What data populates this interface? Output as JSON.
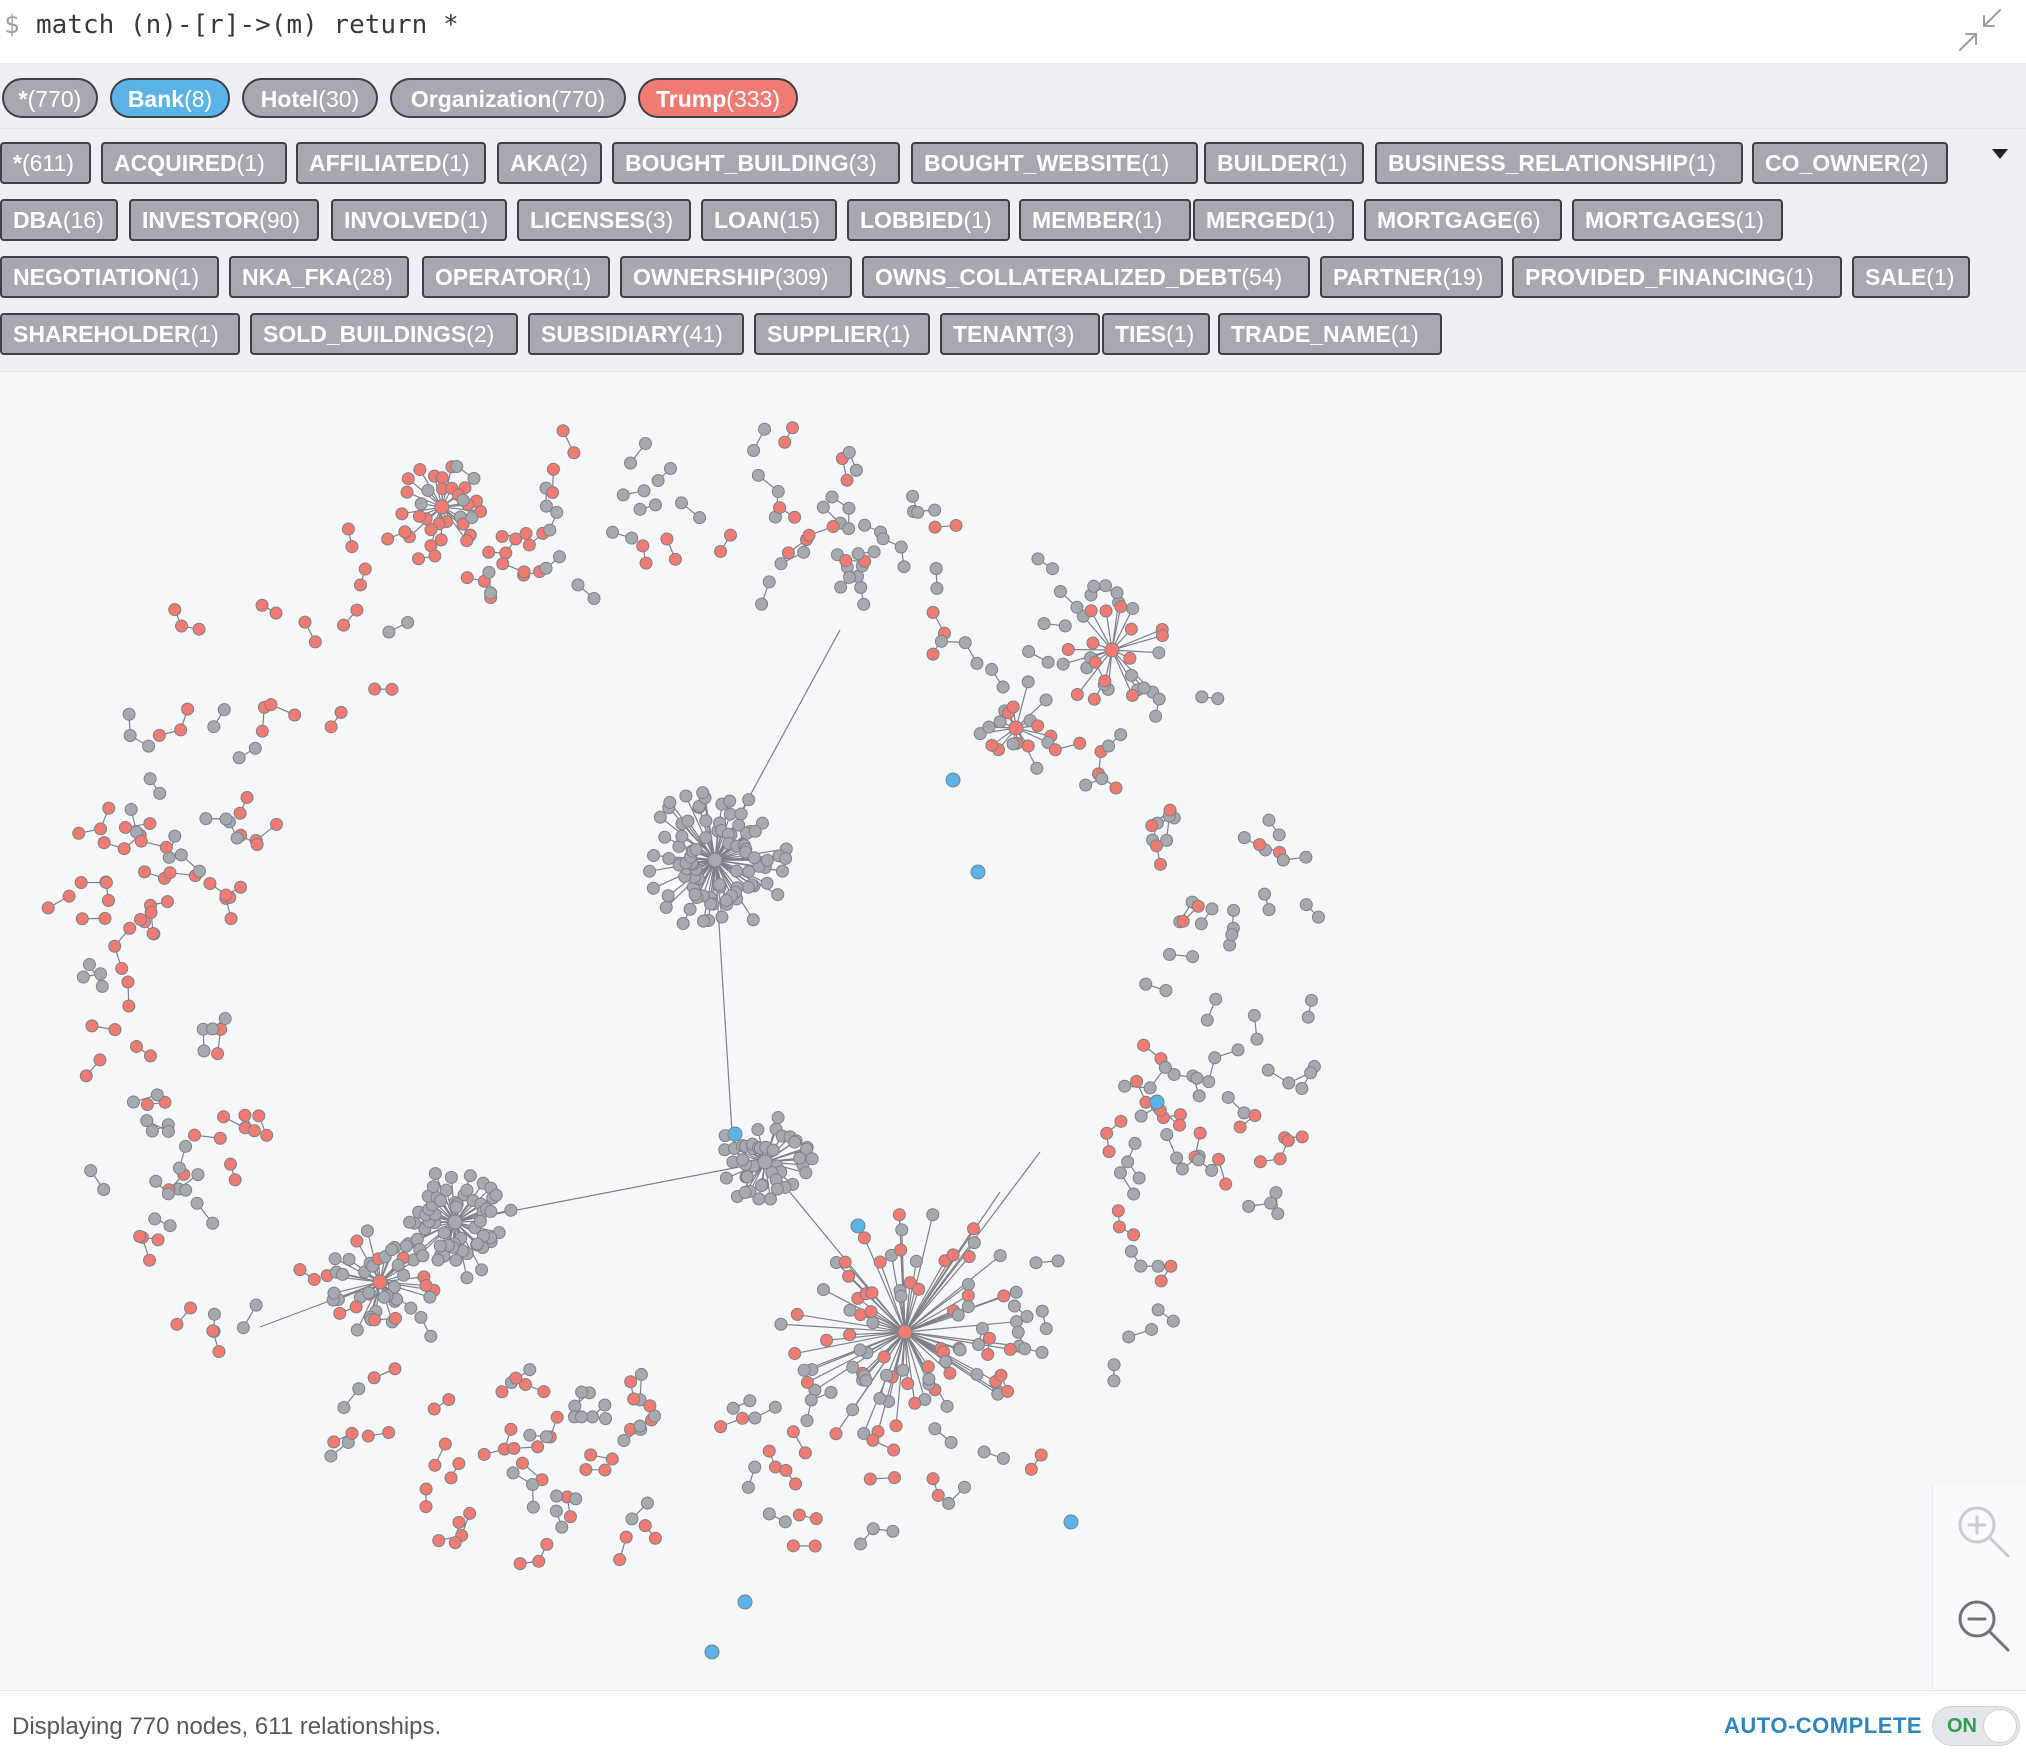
{
  "query": {
    "prompt": "$",
    "text": "match (n)-[r]->(m) return *"
  },
  "colors": {
    "gray": "#a5a9b0",
    "bank": "#5cb3e8",
    "trump": "#ef7b72",
    "accent": "#2e86c1",
    "dark_border": "#3d4046"
  },
  "labels": [
    {
      "name": "*",
      "count": "(770)",
      "color": "#a5a9b0"
    },
    {
      "name": "Bank",
      "count": "(8)",
      "color": "#5cb3e8"
    },
    {
      "name": "Hotel",
      "count": "(30)",
      "color": "#a5a9b0"
    },
    {
      "name": "Organization",
      "count": "(770)",
      "color": "#a5a9b0"
    },
    {
      "name": "Trump",
      "count": "(333)",
      "color": "#ef7b72"
    }
  ],
  "relationships": [
    {
      "name": "*",
      "count": "(611)"
    },
    {
      "name": "ACQUIRED",
      "count": "(1)"
    },
    {
      "name": "AFFILIATED",
      "count": "(1)"
    },
    {
      "name": "AKA",
      "count": "(2)"
    },
    {
      "name": "BOUGHT_BUILDING",
      "count": "(3)"
    },
    {
      "name": "BOUGHT_WEBSITE",
      "count": "(1)"
    },
    {
      "name": "BUILDER",
      "count": "(1)"
    },
    {
      "name": "BUSINESS_RELATIONSHIP",
      "count": "(1)"
    },
    {
      "name": "CO_OWNER",
      "count": "(2)"
    },
    {
      "name": "DBA",
      "count": "(16)"
    },
    {
      "name": "INVESTOR",
      "count": "(90)"
    },
    {
      "name": "INVOLVED",
      "count": "(1)"
    },
    {
      "name": "LICENSES",
      "count": "(3)"
    },
    {
      "name": "LOAN",
      "count": "(15)"
    },
    {
      "name": "LOBBIED",
      "count": "(1)"
    },
    {
      "name": "MEMBER",
      "count": "(1)"
    },
    {
      "name": "MERGED",
      "count": "(1)"
    },
    {
      "name": "MORTGAGE",
      "count": "(6)"
    },
    {
      "name": "MORTGAGES",
      "count": "(1)"
    },
    {
      "name": "NEGOTIATION",
      "count": "(1)"
    },
    {
      "name": "NKA_FKA",
      "count": "(28)"
    },
    {
      "name": "OPERATOR",
      "count": "(1)"
    },
    {
      "name": "OWNERSHIP",
      "count": "(309)"
    },
    {
      "name": "OWNS_COLLATERALIZED_DEBT",
      "count": "(54)"
    },
    {
      "name": "PARTNER",
      "count": "(19)"
    },
    {
      "name": "PROVIDED_FINANCING",
      "count": "(1)"
    },
    {
      "name": "SALE",
      "count": "(1)"
    },
    {
      "name": "SHAREHOLDER",
      "count": "(1)"
    },
    {
      "name": "SOLD_BUILDINGS",
      "count": "(2)"
    },
    {
      "name": "SUBSIDIARY",
      "count": "(41)"
    },
    {
      "name": "SUPPLIER",
      "count": "(1)"
    },
    {
      "name": "TENANT",
      "count": "(3)"
    },
    {
      "name": "TIES",
      "count": "(1)"
    },
    {
      "name": "TRADE_NAME",
      "count": "(1)"
    }
  ],
  "status": {
    "text": "Displaying 770 nodes, 611 relationships."
  },
  "autocomplete": {
    "label": "AUTO-COMPLETE",
    "state": "ON"
  },
  "icons": [
    "collapse-icon",
    "dropdown-caret-icon",
    "zoom-in-icon",
    "zoom-out-icon"
  ]
}
